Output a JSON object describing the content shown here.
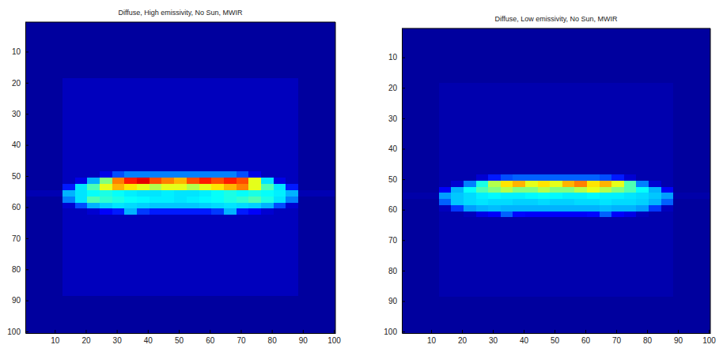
{
  "chart_data": [
    {
      "type": "heatmap",
      "title": "Diffuse, High emissivity, No Sun, MWIR",
      "x_edges": [
        0.5,
        12.5,
        16.5,
        20.5,
        24.5,
        28.5,
        32.5,
        36.5,
        40.5,
        44.5,
        48.5,
        52.5,
        56.5,
        60.5,
        64.5,
        68.5,
        72.5,
        76.5,
        80.5,
        84.5,
        88.5,
        100.5
      ],
      "y_edges": [
        0.5,
        18.5,
        48.5,
        50.5,
        52.5,
        54.5,
        56.5,
        58.5,
        60.5,
        62.5,
        88.5,
        100.5
      ],
      "z": [
        [
          0.03,
          0.03,
          0.03,
          0.03,
          0.03,
          0.03,
          0.03,
          0.03,
          0.03,
          0.03,
          0.03,
          0.03,
          0.03,
          0.03,
          0.03,
          0.03,
          0.03,
          0.03,
          0.03,
          0.03,
          0.03
        ],
        [
          0.03,
          0.06,
          0.06,
          0.06,
          0.06,
          0.06,
          0.06,
          0.06,
          0.06,
          0.06,
          0.06,
          0.06,
          0.06,
          0.06,
          0.06,
          0.06,
          0.06,
          0.06,
          0.06,
          0.06,
          0.03
        ],
        [
          0.03,
          0.06,
          0.06,
          0.06,
          0.1,
          0.2,
          0.25,
          0.25,
          0.25,
          0.25,
          0.25,
          0.25,
          0.25,
          0.25,
          0.25,
          0.2,
          0.1,
          0.06,
          0.06,
          0.06,
          0.03
        ],
        [
          0.03,
          0.06,
          0.1,
          0.3,
          0.5,
          0.75,
          0.85,
          0.9,
          0.8,
          0.75,
          0.7,
          0.8,
          0.85,
          0.8,
          0.85,
          0.8,
          0.6,
          0.35,
          0.1,
          0.06,
          0.03
        ],
        [
          0.03,
          0.15,
          0.35,
          0.45,
          0.6,
          0.7,
          0.65,
          0.6,
          0.55,
          0.6,
          0.6,
          0.55,
          0.6,
          0.65,
          0.7,
          0.75,
          0.6,
          0.45,
          0.35,
          0.15,
          0.03
        ],
        [
          0.05,
          0.3,
          0.35,
          0.38,
          0.4,
          0.38,
          0.36,
          0.35,
          0.35,
          0.36,
          0.35,
          0.35,
          0.36,
          0.38,
          0.4,
          0.38,
          0.4,
          0.38,
          0.36,
          0.3,
          0.05
        ],
        [
          0.03,
          0.25,
          0.35,
          0.45,
          0.42,
          0.4,
          0.38,
          0.37,
          0.36,
          0.36,
          0.35,
          0.36,
          0.37,
          0.38,
          0.4,
          0.42,
          0.45,
          0.4,
          0.35,
          0.25,
          0.03
        ],
        [
          0.03,
          0.08,
          0.2,
          0.3,
          0.33,
          0.35,
          0.34,
          0.33,
          0.32,
          0.32,
          0.32,
          0.32,
          0.33,
          0.34,
          0.35,
          0.34,
          0.33,
          0.3,
          0.2,
          0.08,
          0.03
        ],
        [
          0.03,
          0.06,
          0.06,
          0.08,
          0.12,
          0.15,
          0.3,
          0.18,
          0.15,
          0.15,
          0.15,
          0.15,
          0.15,
          0.18,
          0.3,
          0.15,
          0.12,
          0.08,
          0.06,
          0.06,
          0.03
        ],
        [
          0.03,
          0.06,
          0.06,
          0.06,
          0.06,
          0.06,
          0.06,
          0.06,
          0.06,
          0.06,
          0.06,
          0.06,
          0.06,
          0.06,
          0.06,
          0.06,
          0.06,
          0.06,
          0.06,
          0.06,
          0.03
        ],
        [
          0.03,
          0.03,
          0.03,
          0.03,
          0.03,
          0.03,
          0.03,
          0.03,
          0.03,
          0.03,
          0.03,
          0.03,
          0.03,
          0.03,
          0.03,
          0.03,
          0.03,
          0.03,
          0.03,
          0.03,
          0.03
        ]
      ],
      "zlim": [
        0,
        1
      ],
      "xlim": [
        0.5,
        100.5
      ],
      "ylim": [
        0.5,
        100.5
      ],
      "xticks": [
        10,
        20,
        30,
        40,
        50,
        60,
        70,
        80,
        90,
        100
      ],
      "yticks": [
        10,
        20,
        30,
        40,
        50,
        60,
        70,
        80,
        90,
        100
      ]
    },
    {
      "type": "heatmap",
      "title": "Diffuse, Low emissivity, No Sun, MWIR",
      "x_edges": [
        0.5,
        12.5,
        16.5,
        20.5,
        24.5,
        28.5,
        32.5,
        36.5,
        40.5,
        44.5,
        48.5,
        52.5,
        56.5,
        60.5,
        64.5,
        68.5,
        72.5,
        76.5,
        80.5,
        84.5,
        88.5,
        100.5
      ],
      "y_edges": [
        0.5,
        18.5,
        48.5,
        50.5,
        52.5,
        54.5,
        56.5,
        58.5,
        60.5,
        62.5,
        88.5,
        100.5
      ],
      "z": [
        [
          0.03,
          0.03,
          0.03,
          0.03,
          0.03,
          0.03,
          0.03,
          0.03,
          0.03,
          0.03,
          0.03,
          0.03,
          0.03,
          0.03,
          0.03,
          0.03,
          0.03,
          0.03,
          0.03,
          0.03,
          0.03
        ],
        [
          0.03,
          0.045,
          0.045,
          0.045,
          0.045,
          0.045,
          0.045,
          0.045,
          0.045,
          0.045,
          0.045,
          0.045,
          0.045,
          0.045,
          0.045,
          0.045,
          0.045,
          0.045,
          0.045,
          0.045,
          0.03
        ],
        [
          0.03,
          0.045,
          0.045,
          0.045,
          0.08,
          0.15,
          0.2,
          0.22,
          0.22,
          0.22,
          0.22,
          0.22,
          0.22,
          0.22,
          0.2,
          0.15,
          0.08,
          0.045,
          0.045,
          0.045,
          0.03
        ],
        [
          0.03,
          0.045,
          0.08,
          0.25,
          0.4,
          0.55,
          0.65,
          0.7,
          0.6,
          0.65,
          0.6,
          0.7,
          0.75,
          0.65,
          0.7,
          0.6,
          0.45,
          0.25,
          0.08,
          0.045,
          0.03
        ],
        [
          0.03,
          0.12,
          0.3,
          0.38,
          0.45,
          0.5,
          0.55,
          0.5,
          0.5,
          0.55,
          0.5,
          0.5,
          0.55,
          0.6,
          0.55,
          0.5,
          0.45,
          0.38,
          0.3,
          0.12,
          0.03
        ],
        [
          0.04,
          0.28,
          0.32,
          0.34,
          0.36,
          0.37,
          0.36,
          0.36,
          0.37,
          0.38,
          0.37,
          0.36,
          0.36,
          0.37,
          0.36,
          0.36,
          0.35,
          0.34,
          0.32,
          0.28,
          0.04
        ],
        [
          0.03,
          0.22,
          0.32,
          0.34,
          0.35,
          0.34,
          0.34,
          0.33,
          0.33,
          0.34,
          0.33,
          0.33,
          0.34,
          0.34,
          0.35,
          0.34,
          0.34,
          0.33,
          0.3,
          0.22,
          0.03
        ],
        [
          0.03,
          0.06,
          0.18,
          0.28,
          0.3,
          0.31,
          0.3,
          0.3,
          0.3,
          0.3,
          0.3,
          0.3,
          0.3,
          0.3,
          0.31,
          0.3,
          0.3,
          0.28,
          0.18,
          0.06,
          0.03
        ],
        [
          0.03,
          0.045,
          0.045,
          0.06,
          0.1,
          0.12,
          0.22,
          0.13,
          0.12,
          0.12,
          0.12,
          0.12,
          0.12,
          0.13,
          0.22,
          0.12,
          0.1,
          0.06,
          0.045,
          0.045,
          0.03
        ],
        [
          0.03,
          0.045,
          0.045,
          0.045,
          0.045,
          0.045,
          0.045,
          0.045,
          0.045,
          0.045,
          0.045,
          0.045,
          0.045,
          0.045,
          0.045,
          0.045,
          0.045,
          0.045,
          0.045,
          0.045,
          0.03
        ],
        [
          0.03,
          0.03,
          0.03,
          0.03,
          0.03,
          0.03,
          0.03,
          0.03,
          0.03,
          0.03,
          0.03,
          0.03,
          0.03,
          0.03,
          0.03,
          0.03,
          0.03,
          0.03,
          0.03,
          0.03,
          0.03
        ]
      ],
      "zlim": [
        0,
        1
      ],
      "xlim": [
        0.5,
        100.5
      ],
      "ylim": [
        0.5,
        100.5
      ],
      "xticks": [
        10,
        20,
        30,
        40,
        50,
        60,
        70,
        80,
        90,
        100
      ],
      "yticks": [
        10,
        20,
        30,
        40,
        50,
        60,
        70,
        80,
        90,
        100
      ]
    }
  ]
}
